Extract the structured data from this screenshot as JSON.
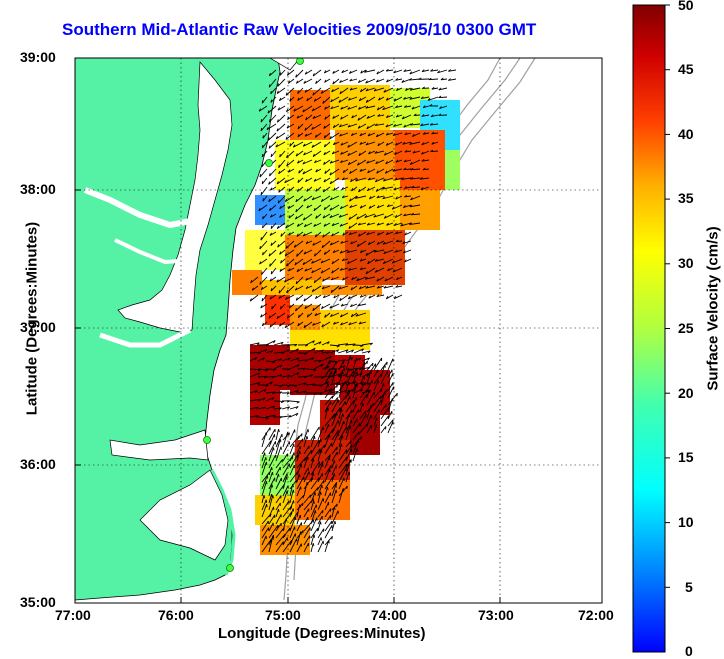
{
  "title": "Southern Mid-Atlantic Raw Velocities 2009/05/10 0300 GMT",
  "xlabel": "Longitude (Degrees:Minutes)",
  "ylabel": "Latitude (Degrees:Minutes)",
  "colorbar": {
    "label": "Surface Velocity (cm/s)",
    "ticks": [
      "0",
      "5",
      "10",
      "15",
      "20",
      "25",
      "30",
      "35",
      "40",
      "45",
      "50"
    ],
    "range": [
      0,
      50
    ]
  },
  "axes": {
    "x_ticks": [
      "77:00",
      "76:00",
      "75:00",
      "74:00",
      "73:00",
      "72:00"
    ],
    "y_ticks": [
      "39:00",
      "38:00",
      "37:00",
      "36:00",
      "35:00"
    ],
    "xlim": [
      -77,
      -72
    ],
    "ylim": [
      35,
      39
    ],
    "grid": "dotted"
  },
  "colors": {
    "land": "#55f2a6",
    "title": "#0000ff",
    "bathymetry": "#a0a0a0"
  },
  "map_regions": [
    {
      "name": "velocity-patch-north",
      "lon": [
        -75.0,
        -73.9
      ],
      "lat": [
        37.2,
        38.8
      ]
    },
    {
      "name": "velocity-patch-mid",
      "lon": [
        -75.6,
        -74.5
      ],
      "lat": [
        36.3,
        37.0
      ]
    },
    {
      "name": "velocity-patch-south",
      "lon": [
        -75.3,
        -74.0
      ],
      "lat": [
        35.4,
        36.6
      ]
    }
  ]
}
